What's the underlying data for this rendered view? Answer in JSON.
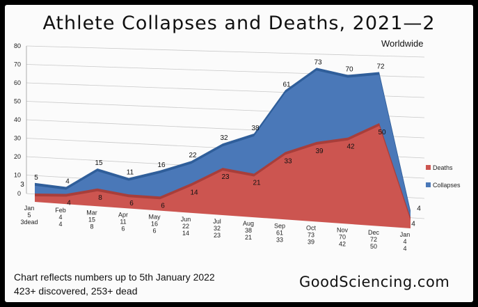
{
  "chart_data": {
    "type": "area",
    "title": "Athlete Collapses and Deaths, 2021—2",
    "subtitle": "Worldwide",
    "categories": [
      "Jan",
      "Feb",
      "Mar",
      "Apr",
      "May",
      "Jun",
      "Jul",
      "Aug",
      "Sep",
      "Oct",
      "Nov",
      "Dec",
      "Jan"
    ],
    "category_sublabels": [
      [
        "5",
        "3dead"
      ],
      [
        "4",
        "4"
      ],
      [
        "15",
        "8"
      ],
      [
        "11",
        "6"
      ],
      [
        "16",
        "6"
      ],
      [
        "22",
        "14"
      ],
      [
        "32",
        "23"
      ],
      [
        "38",
        "21"
      ],
      [
        "61",
        "33"
      ],
      [
        "73",
        "39"
      ],
      [
        "70",
        "42"
      ],
      [
        "72",
        "50"
      ],
      [
        "4",
        "4"
      ]
    ],
    "series": [
      {
        "name": "Collapses",
        "values": [
          5,
          4,
          15,
          11,
          16,
          22,
          32,
          38,
          61,
          73,
          70,
          72,
          4
        ],
        "color": "#4a78b8"
      },
      {
        "name": "Deaths",
        "values": [
          3,
          4,
          8,
          6,
          6,
          14,
          23,
          21,
          33,
          39,
          42,
          50,
          4
        ],
        "color": "#cc5550"
      }
    ],
    "y_ticks": [
      "0",
      "10",
      "20",
      "30",
      "40",
      "50",
      "60",
      "70",
      "80"
    ],
    "ylim": [
      0,
      80
    ],
    "grid": true,
    "legend": "right"
  },
  "footer": {
    "note_line1": "Chart reflects numbers up to 5th January 2022",
    "note_line2": "423+ discovered, 253+ dead",
    "brand": "GoodSciencing.com"
  }
}
